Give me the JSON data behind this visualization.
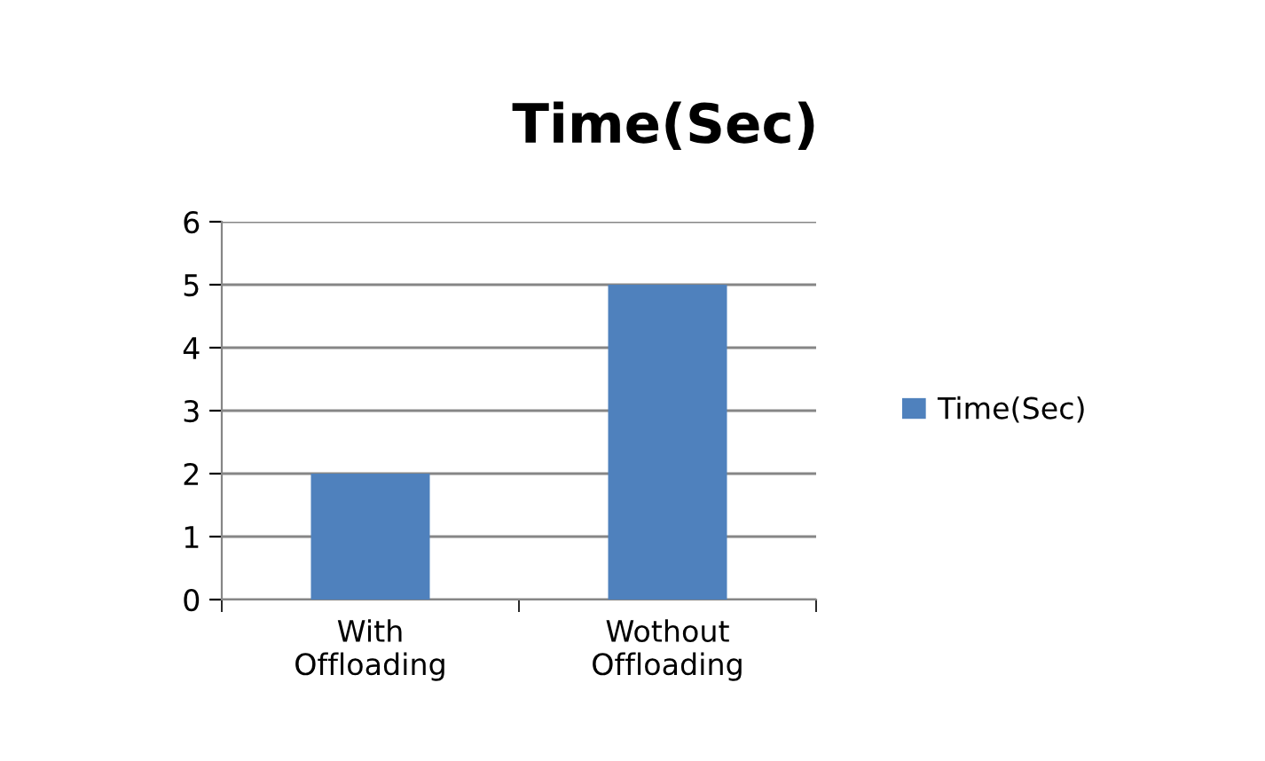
{
  "chart_data": {
    "type": "bar",
    "title": "Time(Sec)",
    "categories": [
      "With\nOffloading",
      "Wothout\nOffloading"
    ],
    "series": [
      {
        "name": "Time(Sec)",
        "color": "#4f81bd",
        "values": [
          2,
          5
        ]
      }
    ],
    "ylim": [
      0,
      6
    ],
    "yticks": [
      0,
      1,
      2,
      3,
      4,
      5,
      6
    ],
    "grid": "y",
    "legend": "right"
  }
}
